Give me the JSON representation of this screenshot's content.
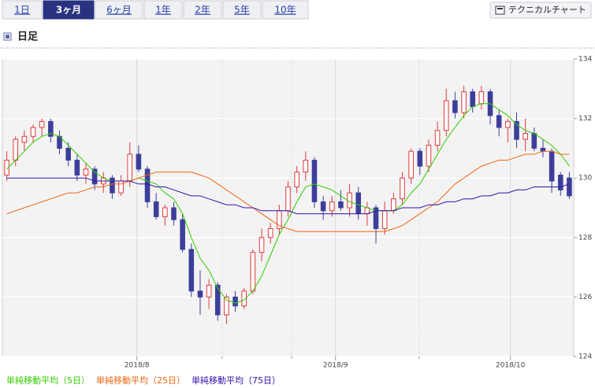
{
  "tabs": [
    "1日",
    "3ヶ月",
    "6ヶ月",
    "1年",
    "2年",
    "5年",
    "10年"
  ],
  "button": "テクニカルチャート",
  "section": "日足",
  "chart_data": {
    "type": "candlestick",
    "open": [
      130.1,
      130.6,
      131.2,
      131.4,
      131.7,
      131.9,
      131.4,
      131.0,
      130.6,
      130.1,
      130.3,
      129.8,
      130.0,
      129.5,
      129.9,
      130.8,
      130.3,
      129.2,
      128.7,
      129.0,
      128.6,
      127.6,
      126.2,
      126.0,
      126.4,
      125.4,
      126.0,
      125.7,
      126.2,
      127.5,
      128.0,
      128.3,
      128.9,
      129.7,
      130.2,
      130.6,
      129.2,
      128.9,
      129.2,
      129.0,
      129.5,
      128.8,
      129.0,
      128.3,
      128.9,
      129.3,
      130.0,
      130.9,
      130.4,
      131.1,
      131.6,
      132.6,
      132.2,
      132.9,
      132.5,
      132.9,
      132.1,
      131.7,
      131.9,
      131.3,
      131.5,
      131.0,
      130.9,
      130.1,
      130.0
    ],
    "high": [
      130.9,
      131.4,
      131.6,
      131.8,
      132.0,
      132.0,
      131.6,
      131.2,
      130.8,
      130.5,
      130.4,
      130.2,
      130.1,
      130.1,
      131.2,
      131.1,
      130.4,
      129.5,
      129.1,
      129.2,
      128.8,
      127.8,
      126.9,
      126.6,
      126.5,
      126.1,
      126.2,
      126.3,
      127.6,
      128.3,
      128.5,
      129.1,
      129.9,
      130.4,
      130.9,
      130.7,
      129.4,
      129.4,
      129.6,
      129.8,
      129.7,
      129.2,
      129.1,
      129.2,
      129.5,
      130.2,
      131.0,
      131.0,
      131.3,
      131.9,
      133.0,
      132.9,
      133.1,
      133.0,
      133.1,
      133.0,
      132.3,
      132.0,
      132.2,
      132.0,
      131.7,
      131.3,
      131.0,
      130.2,
      130.2
    ],
    "low": [
      129.9,
      130.4,
      130.9,
      131.2,
      131.4,
      131.2,
      130.8,
      130.4,
      129.9,
      129.8,
      129.6,
      129.5,
      129.3,
      129.4,
      129.7,
      130.2,
      129.0,
      128.6,
      128.4,
      128.4,
      127.5,
      126.0,
      125.4,
      125.6,
      125.2,
      125.1,
      125.5,
      125.6,
      126.1,
      127.2,
      127.8,
      128.1,
      128.7,
      129.5,
      129.9,
      129.0,
      128.6,
      128.7,
      128.9,
      128.7,
      128.6,
      128.4,
      127.8,
      128.1,
      128.8,
      129.1,
      129.8,
      130.1,
      130.2,
      130.9,
      131.4,
      132.0,
      132.0,
      132.2,
      132.3,
      131.8,
      131.4,
      131.2,
      131.0,
      130.9,
      130.9,
      130.7,
      129.5,
      129.4,
      129.3
    ],
    "close": [
      130.6,
      131.3,
      131.4,
      131.7,
      131.9,
      131.4,
      131.0,
      130.6,
      130.1,
      130.3,
      129.8,
      130.0,
      129.5,
      129.9,
      130.8,
      130.3,
      129.2,
      128.7,
      129.0,
      128.6,
      127.6,
      126.2,
      126.0,
      126.4,
      125.4,
      126.0,
      125.7,
      126.2,
      127.5,
      128.0,
      128.3,
      128.9,
      129.7,
      130.2,
      130.6,
      129.2,
      128.9,
      129.2,
      129.0,
      129.5,
      128.8,
      129.0,
      128.3,
      128.9,
      129.3,
      130.0,
      130.9,
      130.4,
      131.1,
      131.6,
      132.6,
      132.2,
      132.9,
      132.4,
      132.9,
      132.1,
      131.7,
      131.9,
      131.3,
      131.5,
      131.0,
      130.9,
      129.9,
      129.6,
      129.4
    ],
    "up_color": "#e03a3a",
    "down_color": "#3c3f9a",
    "series": [
      {
        "name": "単純移動平均（5日）",
        "color": "#33cc00",
        "values": [
          130.3,
          130.6,
          130.9,
          131.2,
          131.4,
          131.5,
          131.4,
          131.1,
          130.8,
          130.5,
          130.2,
          130.0,
          129.9,
          129.9,
          129.9,
          130.0,
          129.9,
          129.8,
          129.5,
          129.3,
          128.8,
          128.0,
          127.3,
          126.9,
          126.3,
          125.9,
          125.8,
          125.9,
          126.2,
          126.7,
          127.4,
          128.1,
          128.6,
          129.2,
          129.7,
          129.8,
          129.7,
          129.6,
          129.4,
          129.2,
          129.1,
          129.0,
          128.9,
          128.9,
          128.9,
          129.1,
          129.5,
          129.8,
          130.3,
          130.8,
          131.3,
          131.7,
          132.1,
          132.4,
          132.5,
          132.5,
          132.3,
          132.1,
          131.8,
          131.6,
          131.5,
          131.3,
          131.1,
          130.8,
          130.4
        ]
      },
      {
        "name": "単純移動平均（25日）",
        "color": "#ee6611",
        "values": [
          128.8,
          128.9,
          129.0,
          129.1,
          129.2,
          129.3,
          129.4,
          129.5,
          129.5,
          129.6,
          129.7,
          129.7,
          129.8,
          129.8,
          129.9,
          130.0,
          130.1,
          130.2,
          130.2,
          130.2,
          130.2,
          130.2,
          130.1,
          130.0,
          129.8,
          129.6,
          129.4,
          129.2,
          129.0,
          128.8,
          128.6,
          128.4,
          128.3,
          128.2,
          128.2,
          128.2,
          128.2,
          128.2,
          128.2,
          128.2,
          128.2,
          128.2,
          128.2,
          128.2,
          128.3,
          128.4,
          128.6,
          128.8,
          129.0,
          129.2,
          129.5,
          129.8,
          130.0,
          130.2,
          130.4,
          130.5,
          130.6,
          130.6,
          130.7,
          130.8,
          130.8,
          130.9,
          130.9,
          130.8,
          130.8
        ]
      },
      {
        "name": "単純移動平均（75日）",
        "color": "#3311aa",
        "values": [
          130.0,
          130.0,
          130.0,
          130.0,
          130.0,
          130.0,
          130.0,
          130.0,
          130.0,
          130.0,
          129.9,
          129.9,
          129.9,
          129.9,
          129.9,
          129.8,
          129.8,
          129.7,
          129.7,
          129.6,
          129.5,
          129.4,
          129.4,
          129.3,
          129.2,
          129.1,
          129.1,
          129.0,
          129.0,
          128.9,
          128.9,
          128.9,
          128.9,
          128.8,
          128.8,
          128.8,
          128.8,
          128.8,
          128.8,
          128.8,
          128.8,
          128.8,
          128.9,
          128.9,
          128.9,
          129.0,
          129.0,
          129.0,
          129.1,
          129.1,
          129.2,
          129.2,
          129.3,
          129.3,
          129.4,
          129.4,
          129.5,
          129.5,
          129.6,
          129.6,
          129.7,
          129.7,
          129.7,
          129.7,
          129.8
        ]
      }
    ],
    "xlim": [
      -0.5,
      64.5
    ],
    "xticks": [
      {
        "value": 14.8,
        "label": "2018/8"
      },
      {
        "value": 37.4,
        "label": "2018/9"
      },
      {
        "value": 57.3,
        "label": "2018/10"
      }
    ],
    "minor_xticks": [
      24.5,
      32.4,
      46.9
    ],
    "ylim": [
      124,
      134
    ],
    "yticks": [
      124,
      126,
      128,
      130,
      132,
      134
    ],
    "grid": true
  }
}
